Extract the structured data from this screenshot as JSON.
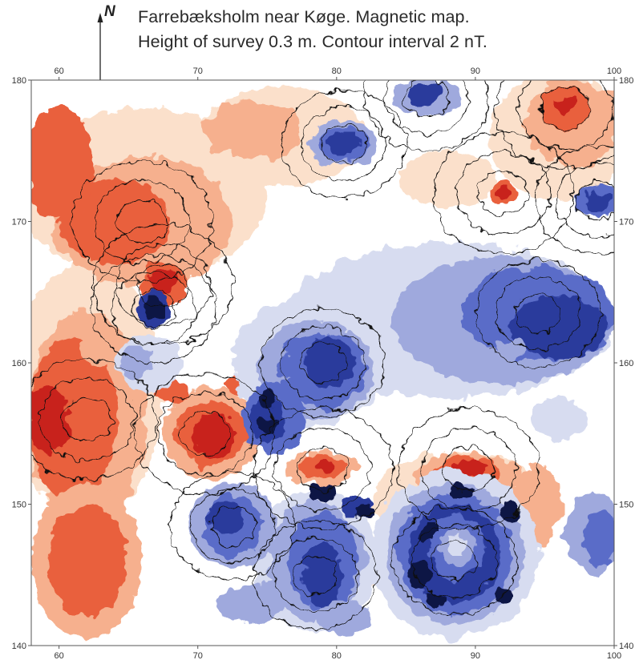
{
  "title": {
    "line1": "Farrebæksholm near Køge. Magnetic map.",
    "line2": "Height of survey 0.3 m. Contour interval 2 nT."
  },
  "north": {
    "label": "N",
    "icon": "north-arrow-icon"
  },
  "map": {
    "x_axis": {
      "range": [
        58,
        100
      ],
      "ticks": [
        60,
        70,
        80,
        90,
        100
      ],
      "tick_labels": [
        "60",
        "70",
        "80",
        "90",
        "100"
      ],
      "placement": "top-and-bottom"
    },
    "y_axis": {
      "range": [
        140,
        180
      ],
      "ticks": [
        140,
        150,
        160,
        170,
        180
      ],
      "tick_labels": [
        "140",
        "150",
        "160",
        "170",
        "180"
      ],
      "placement": "left-and-right"
    },
    "colors": {
      "strong_positive": "#c8201f",
      "positive": "#e9603e",
      "weak_positive": "#f6b08e",
      "faint_positive": "#fbe0cb",
      "neutral": "#ffffff",
      "faint_negative": "#d7dcf0",
      "weak_negative": "#9fa9dd",
      "negative": "#5a6cc8",
      "strong_negative": "#2a3a9c",
      "deepest_negative": "#0d1245",
      "contour": "#111111"
    },
    "anomalies": [
      {
        "label": "negative-north-center",
        "x": 80.5,
        "y": 175.5,
        "polarity": "negative"
      },
      {
        "label": "negative-north-east",
        "x": 86.5,
        "y": 178.8,
        "polarity": "negative"
      },
      {
        "label": "negative-east-band",
        "x": 94.5,
        "y": 163.5,
        "polarity": "negative"
      },
      {
        "label": "negative-far-east",
        "x": 98.8,
        "y": 171.5,
        "polarity": "negative"
      },
      {
        "label": "negative-center",
        "x": 79.0,
        "y": 160.0,
        "polarity": "negative"
      },
      {
        "label": "negative-west-dipole",
        "x": 66.8,
        "y": 163.8,
        "polarity": "negative"
      },
      {
        "label": "negative-south-center",
        "x": 78.5,
        "y": 145.0,
        "polarity": "negative"
      },
      {
        "label": "negative-south-west",
        "x": 72.5,
        "y": 148.5,
        "polarity": "negative"
      },
      {
        "label": "negative-south-ring",
        "x": 88.5,
        "y": 146.0,
        "polarity": "negative"
      },
      {
        "label": "positive-west-region",
        "x": 62.0,
        "y": 156.0,
        "polarity": "positive"
      },
      {
        "label": "positive-north-west",
        "x": 66.0,
        "y": 170.0,
        "polarity": "positive"
      },
      {
        "label": "positive-north-east",
        "x": 96.5,
        "y": 178.0,
        "polarity": "positive"
      },
      {
        "label": "positive-dipole-west",
        "x": 67.5,
        "y": 165.5,
        "polarity": "positive"
      },
      {
        "label": "positive-center-west",
        "x": 70.5,
        "y": 155.0,
        "polarity": "positive"
      },
      {
        "label": "positive-center-south",
        "x": 79.0,
        "y": 152.5,
        "polarity": "positive"
      },
      {
        "label": "positive-east-south",
        "x": 89.5,
        "y": 152.5,
        "polarity": "positive"
      },
      {
        "label": "positive-north-small",
        "x": 92.0,
        "y": 172.0,
        "polarity": "positive"
      }
    ]
  }
}
